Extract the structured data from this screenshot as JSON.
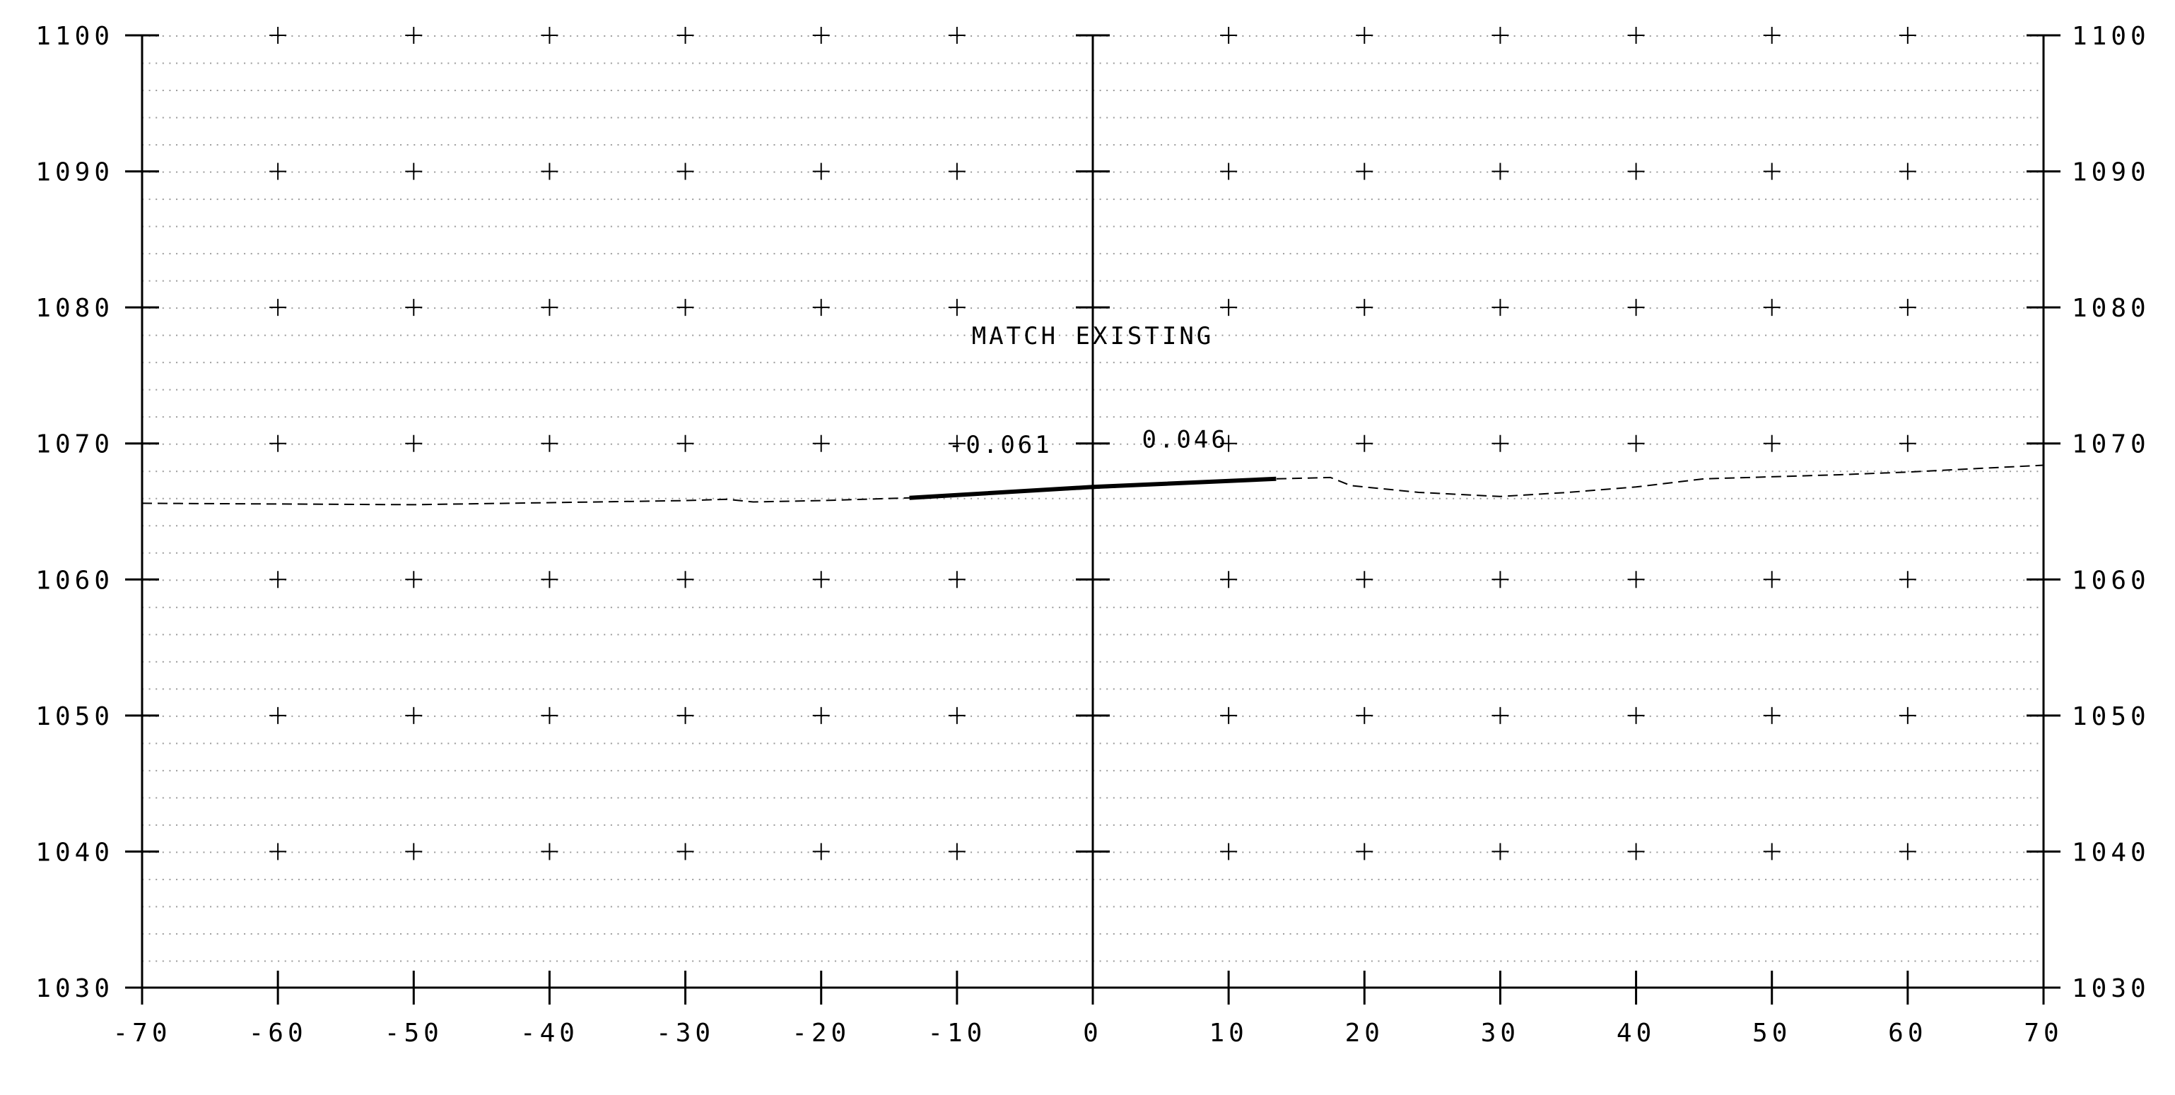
{
  "chart_data": {
    "type": "line",
    "title": "",
    "xlabel": "",
    "ylabel": "",
    "xlim": [
      -70,
      70
    ],
    "ylim": [
      1030,
      1100
    ],
    "x_ticks": [
      -70,
      -60,
      -50,
      -40,
      -30,
      -20,
      -10,
      0,
      10,
      20,
      30,
      40,
      50,
      60,
      70
    ],
    "y_ticks": [
      1030,
      1040,
      1050,
      1060,
      1070,
      1080,
      1090,
      1100
    ],
    "x_tick_labels": [
      "-70",
      "-60",
      "-50",
      "-40",
      "-30",
      "-20",
      "-10",
      "0",
      "10",
      "20",
      "30",
      "40",
      "50",
      "60",
      "70"
    ],
    "y_tick_labels": [
      "1030",
      "1040",
      "1050",
      "1060",
      "1070",
      "1080",
      "1090",
      "1100"
    ],
    "grid": "dotted minor grid with plus markers at major intersections",
    "centerline_x": 0,
    "series": [
      {
        "style": "dashed",
        "points": [
          [
            -70,
            1065.6
          ],
          [
            -50,
            1065.5
          ],
          [
            -30,
            1065.8
          ],
          [
            -27,
            1065.9
          ],
          [
            -25,
            1065.7
          ],
          [
            -20,
            1065.8
          ],
          [
            -13.5,
            1066.0
          ],
          [
            13.5,
            1067.4
          ],
          [
            17.5,
            1067.5
          ],
          [
            19,
            1066.9
          ],
          [
            24,
            1066.4
          ],
          [
            30,
            1066.1
          ],
          [
            35,
            1066.4
          ],
          [
            40,
            1066.8
          ],
          [
            45,
            1067.4
          ],
          [
            55,
            1067.7
          ],
          [
            60,
            1067.9
          ],
          [
            70,
            1068.4
          ]
        ]
      },
      {
        "style": "solid-bold",
        "points": [
          [
            -13.5,
            1066.0
          ],
          [
            0,
            1066.8
          ],
          [
            13.5,
            1067.4
          ]
        ]
      }
    ],
    "annotations": [
      {
        "text": "MATCH EXISTING",
        "x": 0,
        "y": 1077.3
      },
      {
        "text": "-0.061",
        "x": -6.8,
        "y": 1069.3
      },
      {
        "text": "0.046",
        "x": 6.8,
        "y": 1069.7
      }
    ]
  },
  "colors": {
    "ink": "#000000",
    "grid_dots": "#9a9a9a",
    "background": "#ffffff"
  }
}
